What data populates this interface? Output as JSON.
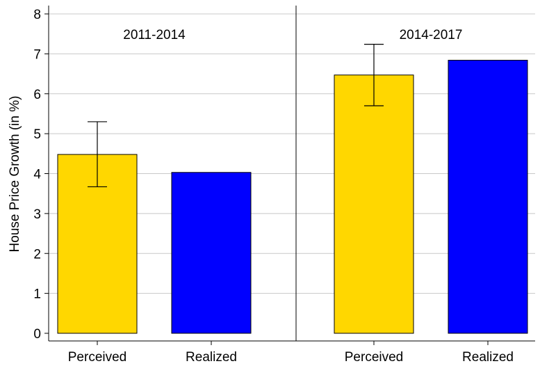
{
  "chart_data": {
    "type": "bar",
    "ylabel": "House Price Growth (in %)",
    "ylim": [
      0,
      8
    ],
    "yticks": [
      0,
      1,
      2,
      3,
      4,
      5,
      6,
      7,
      8
    ],
    "grid": "horizontal",
    "categories": [
      "Perceived",
      "Realized"
    ],
    "colors": {
      "Perceived": "#FFD700",
      "Realized": "#0000FF"
    },
    "panels": [
      {
        "title": "2011-2014",
        "bars": [
          {
            "category": "Perceived",
            "value": 4.48,
            "error_low": 3.67,
            "error_high": 5.3
          },
          {
            "category": "Realized",
            "value": 4.03
          }
        ]
      },
      {
        "title": "2014-2017",
        "bars": [
          {
            "category": "Perceived",
            "value": 6.47,
            "error_low": 5.7,
            "error_high": 7.24
          },
          {
            "category": "Realized",
            "value": 6.84
          }
        ]
      }
    ]
  }
}
